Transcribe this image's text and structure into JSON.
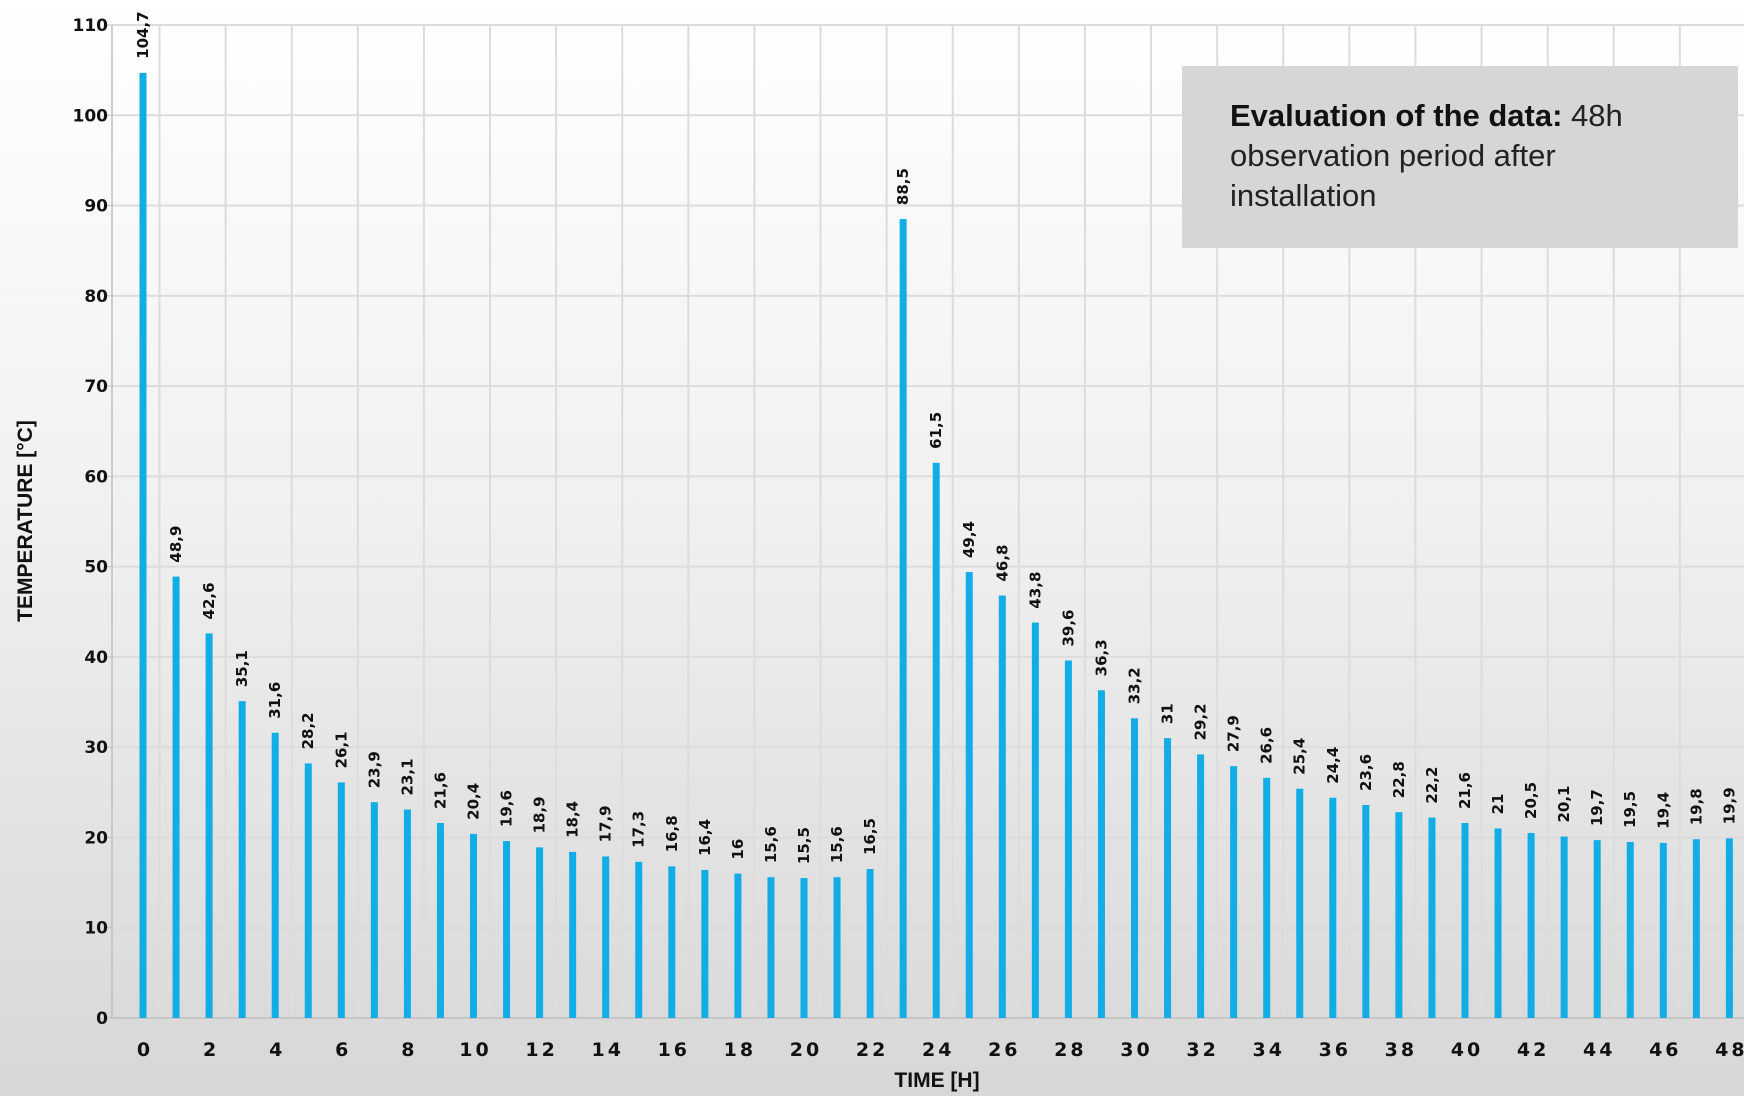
{
  "annotation": {
    "bold_text": "Evaluation of the data:",
    "text": " 48h observation period after installation"
  },
  "chart_data": {
    "type": "bar",
    "title": "",
    "xlabel": "TIME [H]",
    "ylabel": "TEMPERATURE [°C]",
    "ylim": [
      0,
      110
    ],
    "xlim": [
      0,
      48
    ],
    "yticks": [
      0,
      10,
      20,
      30,
      40,
      50,
      60,
      70,
      80,
      90,
      100,
      110
    ],
    "xticks": [
      0,
      2,
      4,
      6,
      8,
      10,
      12,
      14,
      16,
      18,
      20,
      22,
      24,
      26,
      28,
      30,
      32,
      34,
      36,
      38,
      40,
      42,
      44,
      46,
      48
    ],
    "grid": true,
    "bar_color": "#12ace6",
    "decimal_separator": ",",
    "x": [
      0,
      1,
      2,
      3,
      4,
      5,
      6,
      7,
      8,
      9,
      10,
      11,
      12,
      13,
      14,
      15,
      16,
      17,
      18,
      19,
      20,
      21,
      22,
      23,
      24,
      25,
      26,
      27,
      28,
      29,
      30,
      31,
      32,
      33,
      34,
      35,
      36,
      37,
      38,
      39,
      40,
      41,
      42,
      43,
      44,
      45,
      46,
      47,
      48
    ],
    "values": [
      104.7,
      48.9,
      42.6,
      35.1,
      31.6,
      28.2,
      26.1,
      23.9,
      23.1,
      21.6,
      20.4,
      19.6,
      18.9,
      18.4,
      17.9,
      17.3,
      16.8,
      16.4,
      16,
      15.6,
      15.5,
      15.6,
      16.5,
      88.5,
      61.5,
      49.4,
      46.8,
      43.8,
      39.6,
      36.3,
      33.2,
      31,
      29.2,
      27.9,
      26.6,
      25.4,
      24.4,
      23.6,
      22.8,
      22.2,
      21.6,
      21,
      20.5,
      20.1,
      19.7,
      19.5,
      19.4,
      19.8,
      19.9
    ]
  }
}
